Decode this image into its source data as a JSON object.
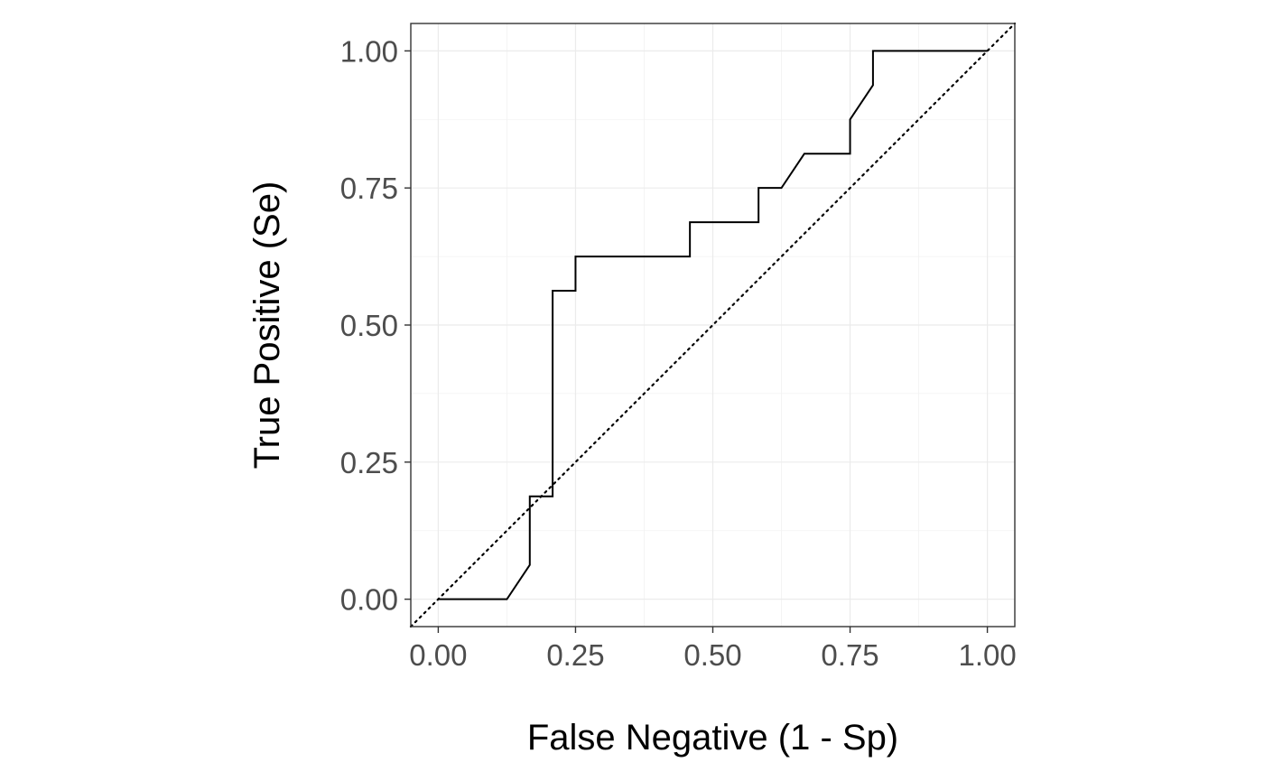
{
  "chart_data": {
    "type": "line",
    "xlabel": "False Negative (1 - Sp)",
    "ylabel": "True Positive (Se)",
    "xlim": [
      -0.05,
      1.05
    ],
    "ylim": [
      -0.05,
      1.05
    ],
    "x_ticks": [
      0,
      0.25,
      0.5,
      0.75,
      1
    ],
    "x_tick_labels": [
      "0.00",
      "0.25",
      "0.50",
      "0.75",
      "1.00"
    ],
    "y_ticks": [
      0,
      0.25,
      0.5,
      0.75,
      1
    ],
    "y_tick_labels": [
      "0.00",
      "0.25",
      "0.50",
      "0.75",
      "1.00"
    ],
    "grid": true,
    "series": [
      {
        "style": "solid",
        "x": [
          0,
          0.125,
          0.1667,
          0.1667,
          0.2083,
          0.2083,
          0.25,
          0.25,
          0.4583,
          0.4583,
          0.5833,
          0.5833,
          0.625,
          0.6667,
          0.75,
          0.75,
          0.7917,
          0.7917,
          1.0
        ],
        "y": [
          0,
          0,
          0.0625,
          0.1875,
          0.1875,
          0.5625,
          0.5625,
          0.625,
          0.625,
          0.6875,
          0.6875,
          0.75,
          0.75,
          0.8125,
          0.8125,
          0.875,
          0.9375,
          1.0,
          1.0
        ]
      },
      {
        "style": "dotted",
        "x": [
          -0.05,
          1.05
        ],
        "y": [
          -0.05,
          1.05
        ]
      }
    ]
  }
}
